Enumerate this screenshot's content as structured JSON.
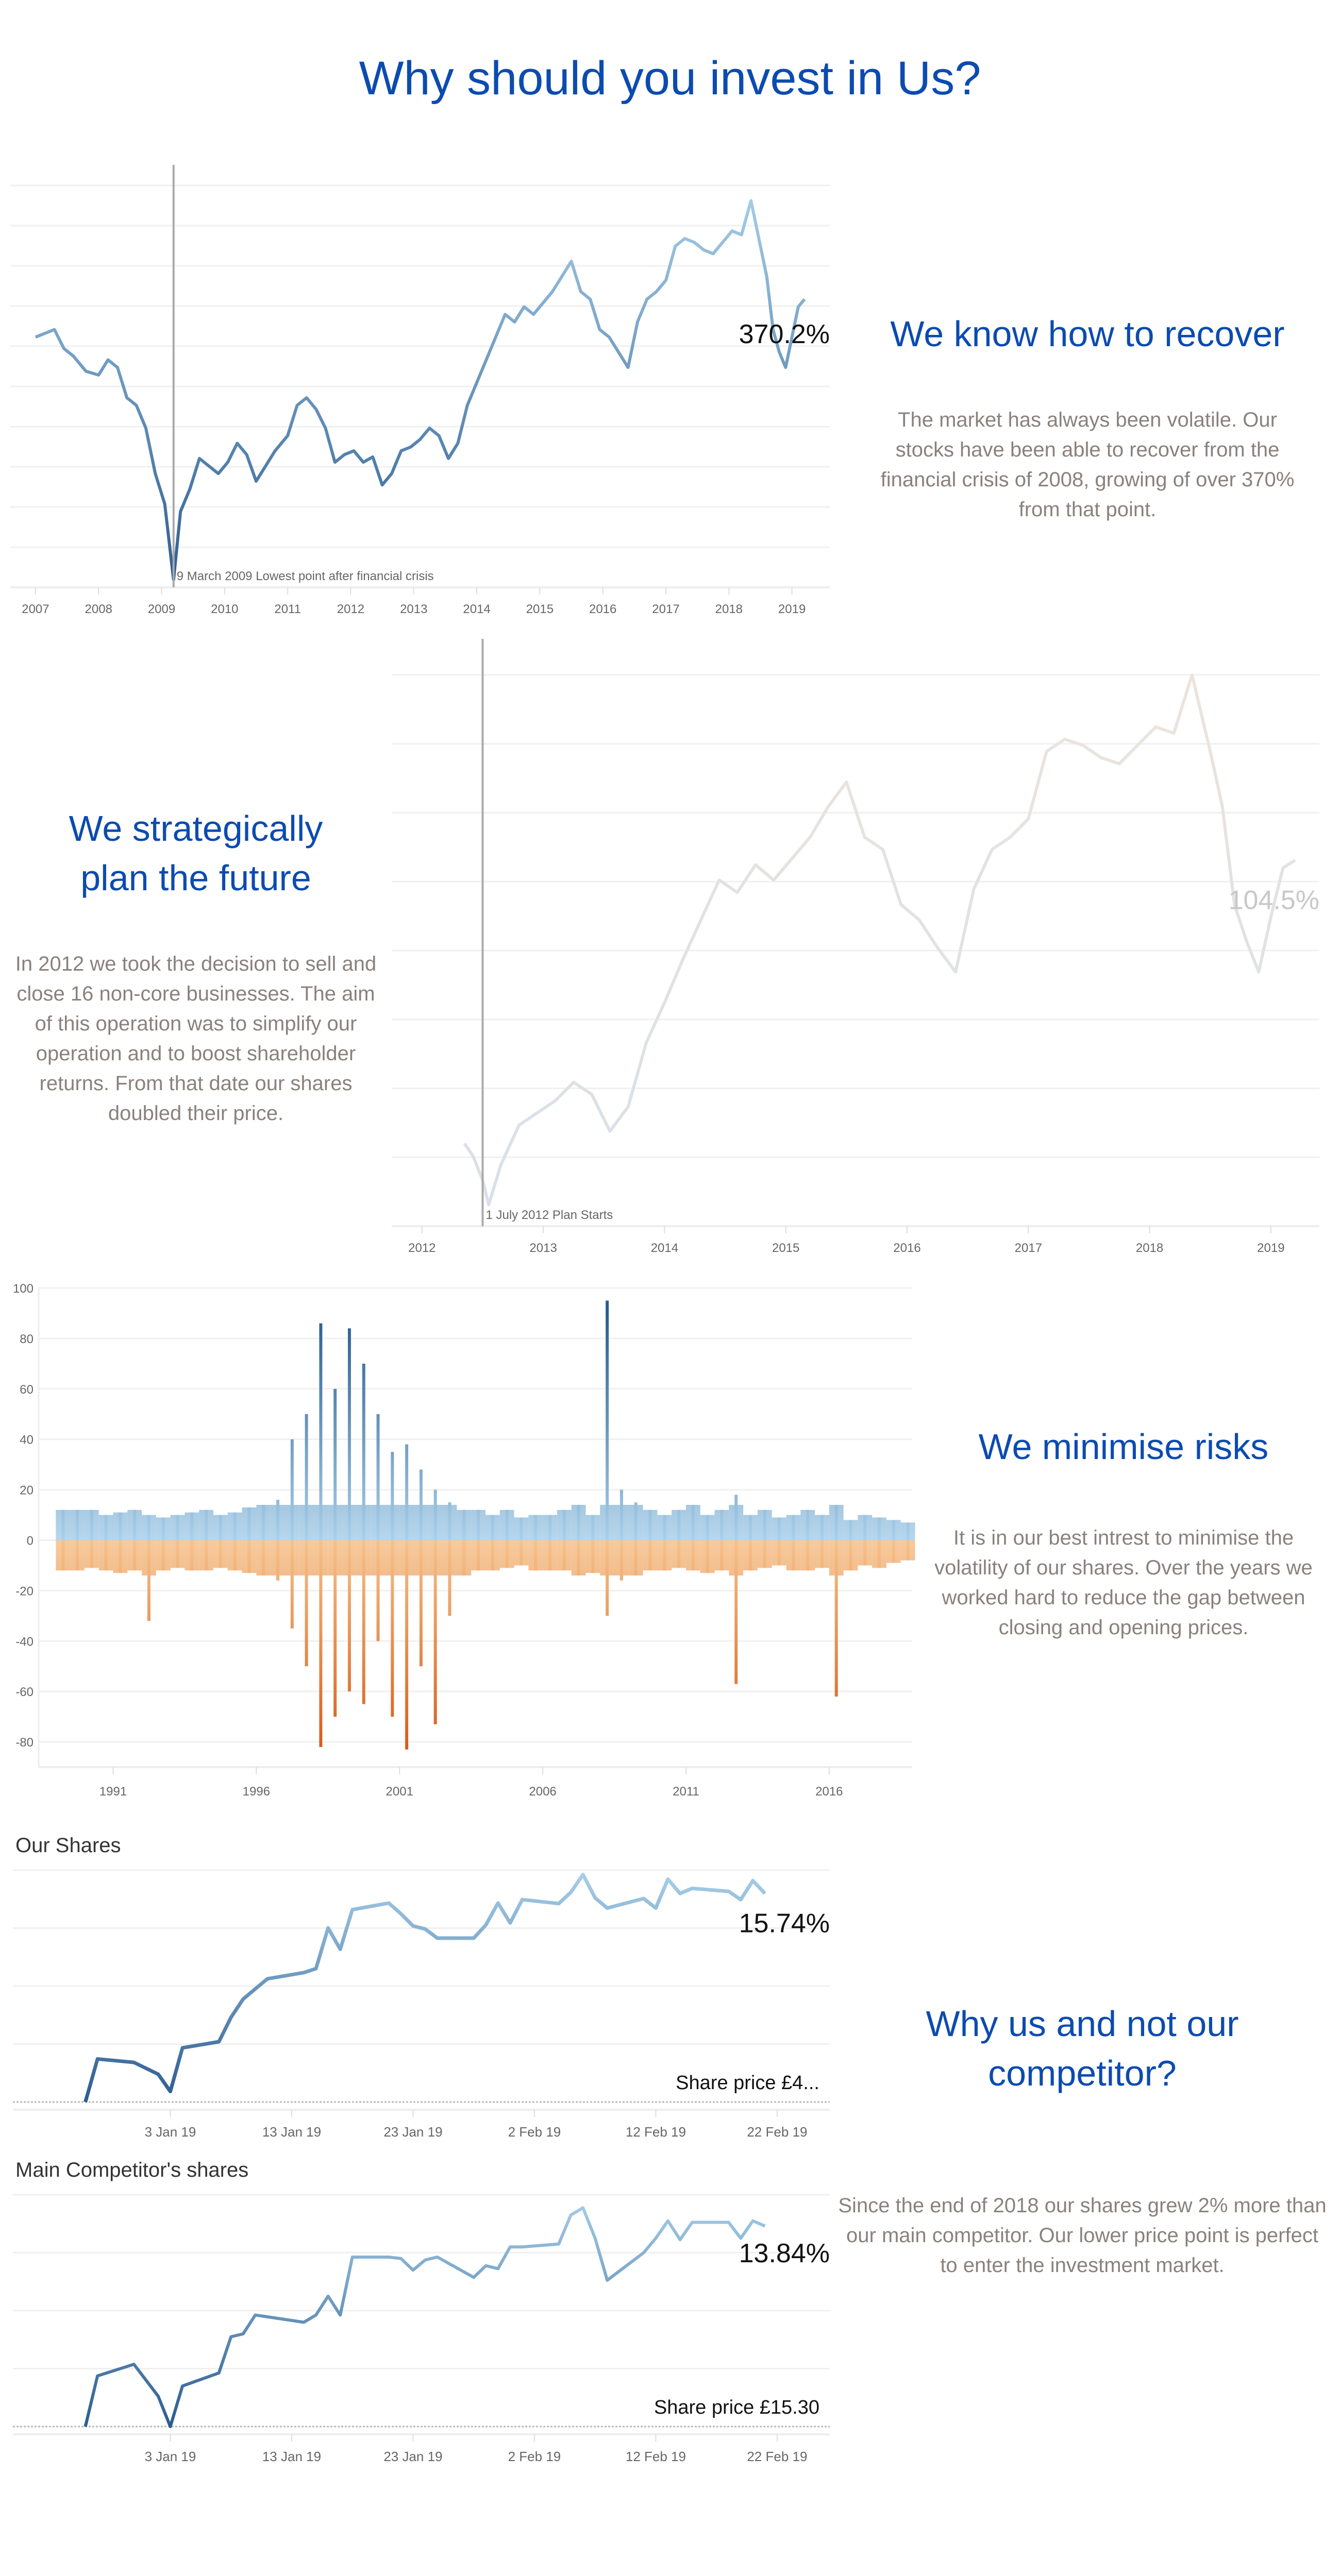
{
  "title": "Why should you invest in Us?",
  "sections": {
    "recover": {
      "heading": "We know how to recover",
      "body": "The market has always been volatile. Our stocks have been able to recover from the financial crisis of 2008, growing of over 370% from that point."
    },
    "plan": {
      "heading": "We strategically plan the future",
      "body": "In 2012 we took the decision to sell and close 16 non-core businesses. The aim of this operation was to simplify our operation and to boost shareholder returns. From that date our shares doubled their price."
    },
    "risk": {
      "heading": "We minimise risks",
      "body": "It is in our best intrest  to minimise the volatility of our shares. Over the years we worked hard to reduce the gap between closing and opening prices."
    },
    "competitor": {
      "heading": "Why us and not our competitor?",
      "body": "Since the end of 2018 our shares grew 2% more than our main competitor. Our lower price point is perfect to enter the investment market."
    }
  },
  "colors": {
    "accent": "#0c4bb0",
    "dark_blue": "#2b5c8f",
    "light_blue": "#a9d0ea",
    "orange_dark": "#d45a16",
    "orange_light": "#f6c28b",
    "faded": "#d6dfe8"
  },
  "chart_data": [
    {
      "type": "line",
      "id": "recover",
      "xlabel": "",
      "ylabel": "",
      "xticks": [
        "2007",
        "2008",
        "2009",
        "2010",
        "2011",
        "2012",
        "2013",
        "2014",
        "2015",
        "2016",
        "2017",
        "2018",
        "2019"
      ],
      "x": [
        2007.0,
        2007.15,
        2007.3,
        2007.45,
        2007.6,
        2007.8,
        2008.0,
        2008.15,
        2008.3,
        2008.45,
        2008.6,
        2008.75,
        2008.9,
        2009.05,
        2009.19,
        2009.3,
        2009.45,
        2009.6,
        2009.75,
        2009.9,
        2010.05,
        2010.2,
        2010.35,
        2010.5,
        2010.65,
        2010.8,
        2011.0,
        2011.15,
        2011.3,
        2011.45,
        2011.6,
        2011.75,
        2011.9,
        2012.05,
        2012.2,
        2012.35,
        2012.5,
        2012.65,
        2012.8,
        2012.95,
        2013.1,
        2013.25,
        2013.4,
        2013.55,
        2013.7,
        2013.85,
        2014.0,
        2014.15,
        2014.3,
        2014.45,
        2014.6,
        2014.75,
        2014.9,
        2015.05,
        2015.2,
        2015.35,
        2015.5,
        2015.65,
        2015.8,
        2015.95,
        2016.1,
        2016.25,
        2016.4,
        2016.55,
        2016.7,
        2016.85,
        2017.0,
        2017.15,
        2017.3,
        2017.45,
        2017.6,
        2017.75,
        2017.9,
        2018.05,
        2018.2,
        2018.35,
        2018.5,
        2018.6,
        2018.7,
        2018.8,
        2018.9,
        2019.0,
        2019.1,
        2019.2
      ],
      "y": [
        420,
        425,
        430,
        405,
        395,
        375,
        370,
        390,
        380,
        340,
        330,
        300,
        240,
        200,
        100,
        190,
        220,
        260,
        250,
        240,
        255,
        280,
        265,
        230,
        250,
        270,
        290,
        330,
        340,
        325,
        300,
        255,
        265,
        270,
        255,
        262,
        225,
        240,
        270,
        275,
        285,
        300,
        290,
        260,
        280,
        330,
        360,
        390,
        420,
        450,
        440,
        460,
        450,
        465,
        480,
        500,
        520,
        480,
        470,
        430,
        420,
        400,
        380,
        440,
        470,
        480,
        495,
        540,
        550,
        545,
        535,
        530,
        545,
        560,
        555,
        600,
        540,
        500,
        430,
        400,
        380,
        420,
        460,
        470
      ],
      "annotation": {
        "x": 2009.19,
        "label": "9 March 2009 Lowest point after financial crisis"
      },
      "end_label": "370.2%"
    },
    {
      "type": "line",
      "id": "plan",
      "xlabel": "",
      "ylabel": "",
      "xticks": [
        "2012",
        "2013",
        "2014",
        "2015",
        "2016",
        "2017",
        "2018",
        "2019"
      ],
      "x": [
        2012.35,
        2012.42,
        2012.5,
        2012.55,
        2012.65,
        2012.8,
        2012.95,
        2013.1,
        2013.25,
        2013.4,
        2013.55,
        2013.7,
        2013.85,
        2014.0,
        2014.15,
        2014.3,
        2014.45,
        2014.6,
        2014.75,
        2014.9,
        2015.05,
        2015.2,
        2015.35,
        2015.5,
        2015.65,
        2015.8,
        2015.95,
        2016.1,
        2016.25,
        2016.4,
        2016.55,
        2016.7,
        2016.85,
        2017.0,
        2017.15,
        2017.3,
        2017.45,
        2017.6,
        2017.75,
        2017.9,
        2018.05,
        2018.2,
        2018.35,
        2018.5,
        2018.6,
        2018.7,
        2018.8,
        2018.9,
        2019.0,
        2019.1,
        2019.2
      ],
      "y": [
        112,
        108,
        100,
        92,
        105,
        118,
        122,
        126,
        132,
        128,
        116,
        124,
        145,
        158,
        172,
        185,
        198,
        194,
        203,
        198,
        205,
        212,
        222,
        230,
        212,
        208,
        190,
        185,
        176,
        168,
        195,
        208,
        212,
        218,
        240,
        244,
        242,
        238,
        236,
        242,
        248,
        246,
        265,
        240,
        222,
        190,
        178,
        168,
        186,
        202,
        204.5
      ],
      "annotation": {
        "x": 2012.5,
        "label": "1 July 2012 Plan Starts"
      },
      "end_label": "104.5%"
    },
    {
      "type": "bar",
      "id": "risk",
      "xlabel": "",
      "ylabel": "",
      "yticks": [
        100,
        80,
        60,
        40,
        20,
        0,
        -20,
        -40,
        -60,
        -80
      ],
      "xticks": [
        "1991",
        "1996",
        "2001",
        "2006",
        "2011",
        "2016"
      ],
      "ylim": [
        -90,
        100
      ],
      "x_start": 1989.0,
      "x_step": 0.5,
      "positive": [
        12,
        12,
        12,
        10,
        11,
        12,
        10,
        9,
        10,
        11,
        12,
        10,
        11,
        13,
        14,
        16,
        40,
        50,
        86,
        60,
        84,
        70,
        50,
        35,
        38,
        28,
        20,
        15,
        12,
        12,
        10,
        12,
        9,
        10,
        10,
        12,
        14,
        10,
        95,
        20,
        15,
        12,
        10,
        12,
        14,
        10,
        12,
        18,
        10,
        12,
        9,
        10,
        12,
        10,
        14,
        8,
        10,
        9,
        8,
        7
      ],
      "negative": [
        -12,
        -12,
        -11,
        -12,
        -13,
        -12,
        -32,
        -12,
        -11,
        -12,
        -12,
        -11,
        -12,
        -13,
        -14,
        -16,
        -35,
        -50,
        -82,
        -70,
        -60,
        -65,
        -40,
        -70,
        -83,
        -50,
        -73,
        -30,
        -14,
        -12,
        -12,
        -11,
        -10,
        -12,
        -12,
        -12,
        -14,
        -13,
        -30,
        -16,
        -14,
        -12,
        -12,
        -11,
        -12,
        -13,
        -12,
        -57,
        -12,
        -11,
        -10,
        -12,
        -12,
        -11,
        -62,
        -12,
        -10,
        -11,
        -9,
        -8
      ]
    },
    {
      "type": "line",
      "id": "ours",
      "title": "Our Shares",
      "xticks": [
        "3 Jan 19",
        "13 Jan 19",
        "23 Jan 19",
        "2 Feb 19",
        "12 Feb 19",
        "22 Feb 19"
      ],
      "xtick_dates": [
        "2019-01-03",
        "2019-01-13",
        "2019-01-23",
        "2019-02-02",
        "2019-02-12",
        "2019-02-22"
      ],
      "x": [
        "2018-12-27",
        "2018-12-28",
        "2018-12-31",
        "2019-01-02",
        "2019-01-03",
        "2019-01-04",
        "2019-01-07",
        "2019-01-08",
        "2019-01-09",
        "2019-01-10",
        "2019-01-11",
        "2019-01-14",
        "2019-01-15",
        "2019-01-16",
        "2019-01-17",
        "2019-01-18",
        "2019-01-21",
        "2019-01-22",
        "2019-01-23",
        "2019-01-24",
        "2019-01-25",
        "2019-01-28",
        "2019-01-29",
        "2019-01-30",
        "2019-01-31",
        "2019-02-01",
        "2019-02-04",
        "2019-02-05",
        "2019-02-06",
        "2019-02-07",
        "2019-02-08",
        "2019-02-11",
        "2019-02-12",
        "2019-02-13",
        "2019-02-14",
        "2019-02-15",
        "2019-02-18",
        "2019-02-19",
        "2019-02-20",
        "2019-02-21"
      ],
      "y": [
        0,
        3.25,
        2.99,
        2.1,
        0.8,
        4.09,
        4.55,
        6.39,
        7.77,
        8.54,
        9.3,
        9.77,
        10.07,
        13.14,
        11.53,
        14.52,
        15.02,
        14.21,
        13.29,
        13.06,
        12.37,
        12.37,
        13.37,
        15.02,
        13.52,
        15.28,
        14.98,
        15.83,
        17.17,
        15.41,
        14.64,
        15.36,
        14.64,
        16.82,
        15.74,
        16.13,
        15.9,
        15.28,
        16.71,
        15.74
      ],
      "end_label": "15.74%",
      "price_label": "Share price £4..."
    },
    {
      "type": "line",
      "id": "competitor",
      "title": "Main Competitor's shares",
      "xticks": [
        "3 Jan 19",
        "13 Jan 19",
        "23 Jan 19",
        "2 Feb 19",
        "12 Feb 19",
        "22 Feb 19"
      ],
      "xtick_dates": [
        "2019-01-03",
        "2019-01-13",
        "2019-01-23",
        "2019-02-02",
        "2019-02-12",
        "2019-02-22"
      ],
      "x": [
        "2018-12-27",
        "2018-12-28",
        "2018-12-31",
        "2019-01-02",
        "2019-01-03",
        "2019-01-04",
        "2019-01-07",
        "2019-01-08",
        "2019-01-09",
        "2019-01-10",
        "2019-01-14",
        "2019-01-15",
        "2019-01-16",
        "2019-01-17",
        "2019-01-18",
        "2019-01-21",
        "2019-01-22",
        "2019-01-23",
        "2019-01-24",
        "2019-01-25",
        "2019-01-28",
        "2019-01-29",
        "2019-01-30",
        "2019-01-31",
        "2019-02-01",
        "2019-02-04",
        "2019-02-05",
        "2019-02-06",
        "2019-02-07",
        "2019-02-08",
        "2019-02-11",
        "2019-02-12",
        "2019-02-13",
        "2019-02-14",
        "2019-02-15",
        "2019-02-18",
        "2019-02-19",
        "2019-02-20",
        "2019-02-21"
      ],
      "y": [
        0,
        3.5,
        4.3,
        2.1,
        0,
        2.8,
        3.7,
        6.2,
        6.4,
        7.7,
        7.2,
        7.7,
        9.0,
        7.7,
        11.7,
        11.7,
        11.6,
        10.8,
        11.5,
        11.7,
        10.3,
        11.1,
        10.9,
        12.4,
        12.4,
        12.6,
        14.6,
        15.1,
        13.0,
        10.1,
        12.0,
        13.0,
        14.2,
        12.9,
        14.1,
        14.1,
        13.0,
        14.2,
        13.84
      ],
      "end_label": "13.84%",
      "price_label": "Share price £15.30"
    }
  ]
}
